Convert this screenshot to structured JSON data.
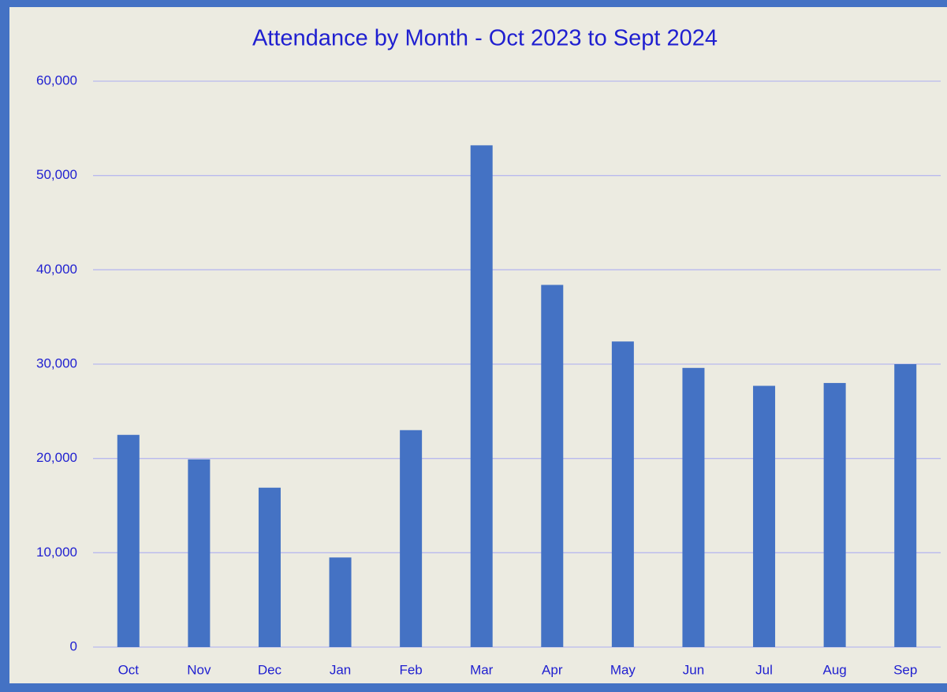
{
  "chart_data": {
    "type": "bar",
    "title": "Attendance by Month - Oct 2023 to Sept 2024",
    "categories": [
      "Oct",
      "Nov",
      "Dec",
      "Jan",
      "Feb",
      "Mar",
      "Apr",
      "May",
      "Jun",
      "Jul",
      "Aug",
      "Sep"
    ],
    "values": [
      22500,
      19900,
      16900,
      9500,
      23000,
      53200,
      38400,
      32400,
      29600,
      27700,
      28000,
      30000
    ],
    "color": "#4472c4",
    "ylim": [
      0,
      60000
    ],
    "yticks": [
      0,
      {
        "value": 10000,
        "label": "10,000"
      },
      {
        "value": 20000,
        "label": "20,000"
      },
      {
        "value": 30000,
        "label": "30,000"
      },
      {
        "value": 40000,
        "label": "40,000"
      },
      {
        "value": 50000,
        "label": "50,000"
      },
      {
        "value": 60000,
        "label": "60,000"
      }
    ],
    "grid": true
  }
}
